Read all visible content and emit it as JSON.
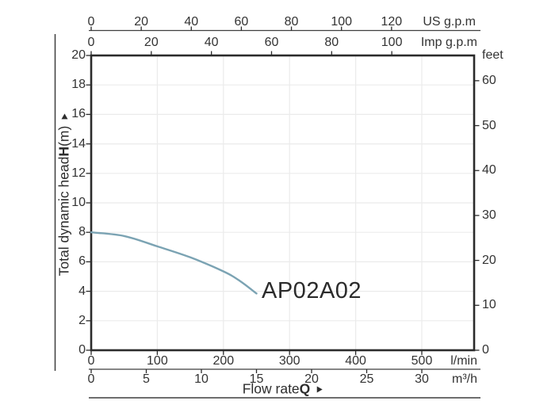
{
  "figure": {
    "y_axis_title": {
      "prefix": "Total dynamic head ",
      "symbol": "H",
      "suffix": " (m)"
    },
    "x_axis_title": {
      "prefix": "Flow rate ",
      "symbol": "Q"
    }
  },
  "chart_data": {
    "type": "line",
    "title": "",
    "xlabel": "Flow rate Q",
    "ylabel": "Total dynamic head H (m)",
    "x_range_lmin": [
      0,
      579
    ],
    "ylim_m": [
      0,
      20
    ],
    "grid": {
      "vertical_every_lmin": 100,
      "horizontal_every_m": 2,
      "visible": true
    },
    "series": [
      {
        "name": "AP02A02",
        "color": "#7ba3b3",
        "points_lmin_m": [
          [
            0,
            8.0
          ],
          [
            50,
            7.75
          ],
          [
            100,
            7.05
          ],
          [
            150,
            6.3
          ],
          [
            200,
            5.35
          ],
          [
            225,
            4.7
          ],
          [
            250,
            3.85
          ]
        ]
      }
    ],
    "axes": {
      "top_us_gpm": {
        "unit": "US g.p.m",
        "ticks": [
          0,
          20,
          40,
          60,
          80,
          100,
          120
        ]
      },
      "top_imp_gpm": {
        "unit": "Imp g.p.m",
        "ticks": [
          0,
          20,
          40,
          60,
          80,
          100
        ]
      },
      "bottom_lmin": {
        "unit": "l/min",
        "ticks": [
          0,
          100,
          200,
          300,
          400,
          500
        ]
      },
      "bottom_m3h": {
        "unit": "m³/h",
        "ticks": [
          0,
          5,
          10,
          15,
          20,
          25,
          30
        ]
      },
      "left_head_m": {
        "ticks": [
          0,
          2,
          4,
          6,
          8,
          10,
          12,
          14,
          16,
          18,
          20
        ]
      },
      "right_feet": {
        "unit": "feet",
        "ticks": [
          0,
          10,
          20,
          30,
          40,
          50,
          60
        ]
      }
    },
    "colors": {
      "curve": "#7ba3b3",
      "plot_border": "#2b2b2b",
      "axis_line": "#3f3f3f",
      "grid_line": "#ebebeb",
      "text": "#333333"
    }
  }
}
